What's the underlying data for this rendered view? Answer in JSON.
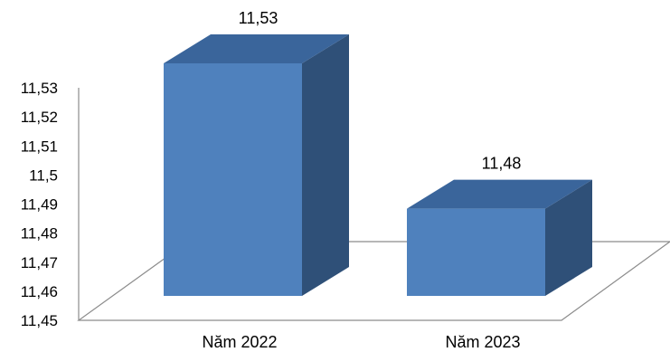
{
  "chart_data": {
    "type": "bar",
    "style": "3d-column",
    "categories": [
      "Năm 2022",
      "Năm 2023"
    ],
    "values": [
      11.53,
      11.48
    ],
    "data_labels": [
      "11,53",
      "11,48"
    ],
    "yticks": [
      "11,45",
      "11,46",
      "11,47",
      "11,48",
      "11,49",
      "11,5",
      "11,51",
      "11,52",
      "11,53"
    ],
    "ylim": [
      11.45,
      11.53
    ],
    "grid": false,
    "legend": "none",
    "colors": {
      "bar_front": "#4F81BD",
      "bar_top": "#3A659B",
      "bar_side": "#2F5078",
      "floor_line": "#8C8C8C",
      "axis_line": "#8C8C8C"
    }
  }
}
